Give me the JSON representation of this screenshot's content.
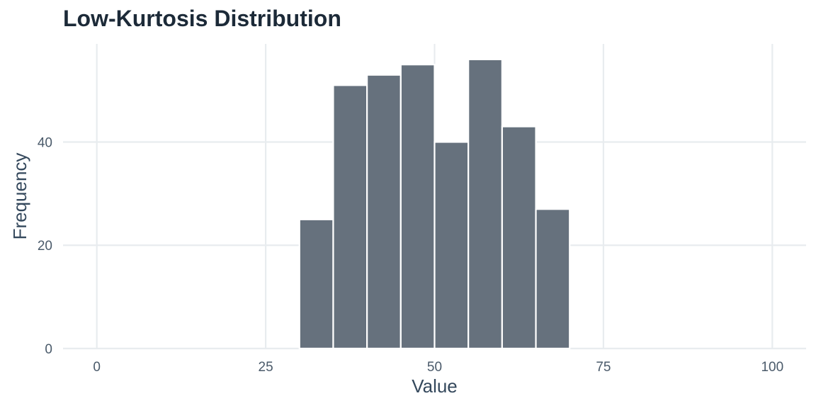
{
  "chart_data": {
    "type": "bar",
    "title": "Low-Kurtosis Distribution",
    "xlabel": "Value",
    "ylabel": "Frequency",
    "xlim": [
      -5,
      105
    ],
    "ylim": [
      0,
      59
    ],
    "x_ticks": [
      0,
      25,
      50,
      75,
      100
    ],
    "y_ticks": [
      0,
      20,
      40
    ],
    "grid": true,
    "bins": [
      {
        "x0": 30,
        "x1": 35,
        "count": 25
      },
      {
        "x0": 35,
        "x1": 40,
        "count": 51
      },
      {
        "x0": 40,
        "x1": 45,
        "count": 53
      },
      {
        "x0": 45,
        "x1": 50,
        "count": 55
      },
      {
        "x0": 50,
        "x1": 55,
        "count": 40
      },
      {
        "x0": 55,
        "x1": 60,
        "count": 56
      },
      {
        "x0": 60,
        "x1": 65,
        "count": 43
      },
      {
        "x0": 65,
        "x1": 70,
        "count": 27
      }
    ],
    "colors": {
      "bar": "#66717d",
      "grid": "#e8ecef",
      "bar_edge": "#ffffff"
    }
  }
}
